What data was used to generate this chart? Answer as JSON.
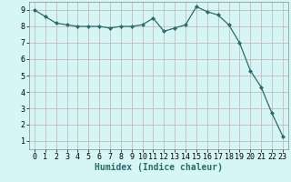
{
  "x": [
    0,
    1,
    2,
    3,
    4,
    5,
    6,
    7,
    8,
    9,
    10,
    11,
    12,
    13,
    14,
    15,
    16,
    17,
    18,
    19,
    20,
    21,
    22,
    23
  ],
  "y": [
    9.0,
    8.6,
    8.2,
    8.1,
    8.0,
    8.0,
    8.0,
    7.9,
    8.0,
    8.0,
    8.1,
    8.5,
    7.7,
    7.9,
    8.1,
    9.2,
    8.9,
    8.7,
    8.1,
    7.0,
    5.3,
    4.3,
    2.7,
    1.3
  ],
  "line_color": "#2d6b6b",
  "marker": "D",
  "marker_size": 2,
  "bg_color": "#d6f5f5",
  "grid_color": "#c0b0b0",
  "xlabel": "Humidex (Indice chaleur)",
  "xlabel_fontsize": 7,
  "tick_fontsize": 6,
  "ylim": [
    0.5,
    9.5
  ],
  "xlim": [
    -0.5,
    23.5
  ],
  "yticks": [
    1,
    2,
    3,
    4,
    5,
    6,
    7,
    8,
    9
  ],
  "xticks": [
    0,
    1,
    2,
    3,
    4,
    5,
    6,
    7,
    8,
    9,
    10,
    11,
    12,
    13,
    14,
    15,
    16,
    17,
    18,
    19,
    20,
    21,
    22,
    23
  ]
}
